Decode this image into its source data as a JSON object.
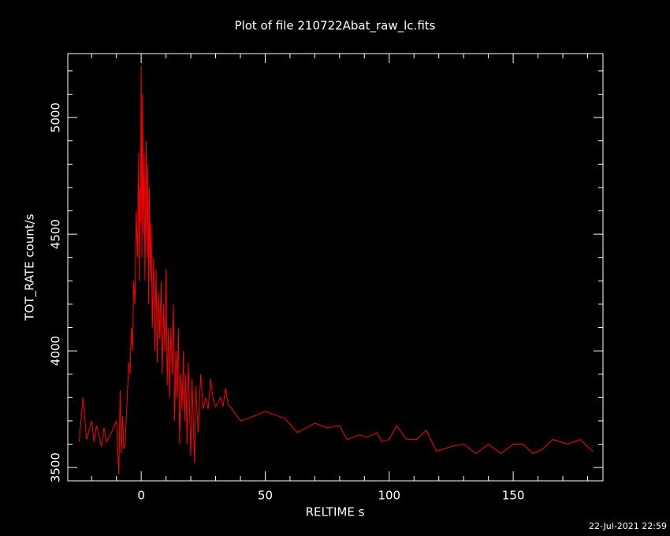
{
  "chart_data": {
    "type": "line",
    "title": "Plot of file 210722Abat_raw_lc.fits",
    "x_label": "RELTIME  s",
    "y_label": "TOT_RATE  count/s",
    "timestamp": "22-Jul-2021 22:59",
    "color": "#ff0000",
    "xlim": [
      -29.6,
      186.2
    ],
    "ylim": [
      3443,
      5274
    ],
    "xticks": [
      0,
      50,
      100,
      150
    ],
    "yticks": [
      3500,
      4000,
      4500,
      5000
    ],
    "xminorticks": [
      -20,
      -10,
      10,
      20,
      30,
      40,
      60,
      70,
      80,
      90,
      110,
      120,
      130,
      140,
      160,
      170,
      180
    ],
    "yminorticks": [
      3600,
      3700,
      3800,
      3900,
      4100,
      4200,
      4300,
      4400,
      4600,
      4700,
      4800,
      4900,
      5100,
      5200
    ],
    "x": [
      -25,
      -23.5,
      -22,
      -20,
      -19,
      -18,
      -16,
      -15,
      -14,
      -12,
      -10,
      -9,
      -8.5,
      -8,
      -7.5,
      -7,
      -6.5,
      -5,
      -4.5,
      -4,
      -3.5,
      -3,
      -2.5,
      -2,
      -1.5,
      -1,
      -0.8,
      -0.5,
      -0.3,
      0,
      0.3,
      0.5,
      0.8,
      1.2,
      1.5,
      2,
      2.3,
      2.7,
      3,
      3.3,
      3.7,
      4,
      4.5,
      5,
      5.5,
      6,
      6.5,
      7,
      7.5,
      8,
      8.5,
      9,
      9.5,
      10,
      10.5,
      11,
      11.5,
      12,
      12.5,
      13,
      13.5,
      14,
      14.5,
      15,
      15.5,
      16,
      16.5,
      17,
      17.5,
      18,
      18.5,
      19,
      20,
      20.5,
      21,
      21.5,
      22,
      23,
      24,
      25,
      26,
      27,
      28,
      29,
      30,
      32,
      33,
      34,
      35,
      36,
      40,
      43,
      50,
      58,
      63,
      70,
      75,
      80,
      83,
      88,
      91,
      95,
      97,
      100,
      103,
      107,
      111,
      115,
      119,
      125,
      130,
      135,
      140,
      145,
      150,
      154,
      158,
      162,
      166,
      172,
      177,
      182
    ],
    "values": [
      3610,
      3800,
      3620,
      3700,
      3610,
      3680,
      3590,
      3670,
      3610,
      3650,
      3700,
      3470,
      3830,
      3560,
      3720,
      3580,
      3600,
      3950,
      3900,
      4100,
      4000,
      4300,
      4200,
      4600,
      4400,
      4850,
      4300,
      4700,
      4550,
      5220,
      4400,
      5100,
      4500,
      4850,
      4300,
      4900,
      4400,
      4800,
      4200,
      4700,
      4300,
      4550,
      4100,
      4400,
      4000,
      4350,
      3950,
      4250,
      4050,
      4300,
      3900,
      4200,
      4000,
      4350,
      3850,
      4100,
      3800,
      4100,
      3900,
      4200,
      3700,
      4000,
      3800,
      4100,
      3600,
      3900,
      3750,
      4000,
      3700,
      3900,
      3600,
      3950,
      3550,
      3880,
      3700,
      3520,
      3850,
      3650,
      3900,
      3750,
      3800,
      3750,
      3880,
      3790,
      3760,
      3800,
      3760,
      3840,
      3770,
      3760,
      3700,
      3710,
      3740,
      3710,
      3650,
      3690,
      3670,
      3680,
      3620,
      3640,
      3630,
      3650,
      3610,
      3620,
      3680,
      3620,
      3620,
      3660,
      3570,
      3590,
      3600,
      3560,
      3600,
      3560,
      3600,
      3600,
      3560,
      3580,
      3620,
      3600,
      3620,
      3570
    ]
  }
}
